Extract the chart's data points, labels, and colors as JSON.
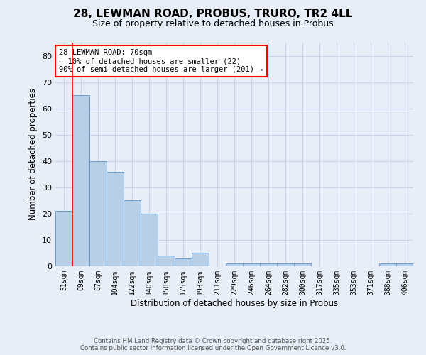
{
  "title_line1": "28, LEWMAN ROAD, PROBUS, TRURO, TR2 4LL",
  "title_line2": "Size of property relative to detached houses in Probus",
  "xlabel": "Distribution of detached houses by size in Probus",
  "ylabel": "Number of detached properties",
  "categories": [
    "51sqm",
    "69sqm",
    "87sqm",
    "104sqm",
    "122sqm",
    "140sqm",
    "158sqm",
    "175sqm",
    "193sqm",
    "211sqm",
    "229sqm",
    "246sqm",
    "264sqm",
    "282sqm",
    "300sqm",
    "317sqm",
    "335sqm",
    "353sqm",
    "371sqm",
    "388sqm",
    "406sqm"
  ],
  "values": [
    21,
    65,
    40,
    36,
    25,
    20,
    4,
    3,
    5,
    0,
    1,
    1,
    1,
    1,
    1,
    0,
    0,
    0,
    0,
    1,
    1
  ],
  "bar_color": "#b8cfe8",
  "bar_edge_color": "#6699cc",
  "red_line_x": 0.5,
  "annotation_line1": "28 LEWMAN ROAD: 70sqm",
  "annotation_line2": "← 10% of detached houses are smaller (22)",
  "annotation_line3": "90% of semi-detached houses are larger (201) →",
  "ylim": [
    0,
    85
  ],
  "yticks": [
    0,
    10,
    20,
    30,
    40,
    50,
    60,
    70,
    80
  ],
  "footer_line1": "Contains HM Land Registry data © Crown copyright and database right 2025.",
  "footer_line2": "Contains public sector information licensed under the Open Government Licence v3.0.",
  "background_color": "#e8eef8",
  "grid_color": "#c8d4e8"
}
